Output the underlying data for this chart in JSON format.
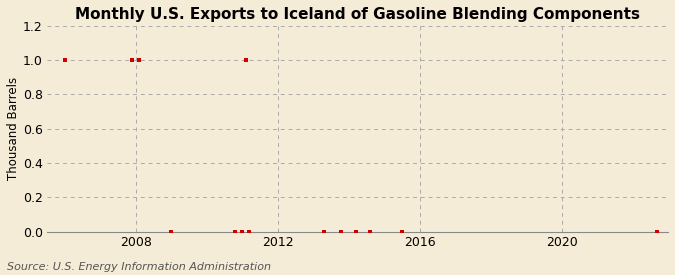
{
  "title": "Monthly U.S. Exports to Iceland of Gasoline Blending Components",
  "ylabel": "Thousand Barrels",
  "source": "Source: U.S. Energy Information Administration",
  "background_color": "#f5ecd7",
  "plot_bg_color": "#f5ecd7",
  "marker_color": "#cc0000",
  "marker_size": 3.5,
  "marker_style": "s",
  "ylim": [
    0.0,
    1.2
  ],
  "yticks": [
    0.0,
    0.2,
    0.4,
    0.6,
    0.8,
    1.0,
    1.2
  ],
  "xlim_start": 2005.5,
  "xlim_end": 2023.0,
  "xticks": [
    2008,
    2012,
    2016,
    2020
  ],
  "hgrid_color": "#aaaaaa",
  "hgrid_style": "--",
  "vgrid_color": "#aaaaaa",
  "vgrid_style": "--",
  "data_points": [
    [
      2006.0,
      1.0
    ],
    [
      2007.9,
      1.0
    ],
    [
      2008.1,
      1.0
    ],
    [
      2009.0,
      0.0
    ],
    [
      2010.8,
      0.0
    ],
    [
      2011.0,
      0.0
    ],
    [
      2011.1,
      1.0
    ],
    [
      2011.2,
      0.0
    ],
    [
      2013.3,
      0.0
    ],
    [
      2013.8,
      0.0
    ],
    [
      2014.2,
      0.0
    ],
    [
      2014.6,
      0.0
    ],
    [
      2015.5,
      0.0
    ],
    [
      2022.7,
      0.0
    ]
  ],
  "vgrid_years": [
    2008,
    2012,
    2016,
    2020
  ],
  "title_fontsize": 11,
  "ylabel_fontsize": 8.5,
  "tick_fontsize": 9,
  "source_fontsize": 8
}
